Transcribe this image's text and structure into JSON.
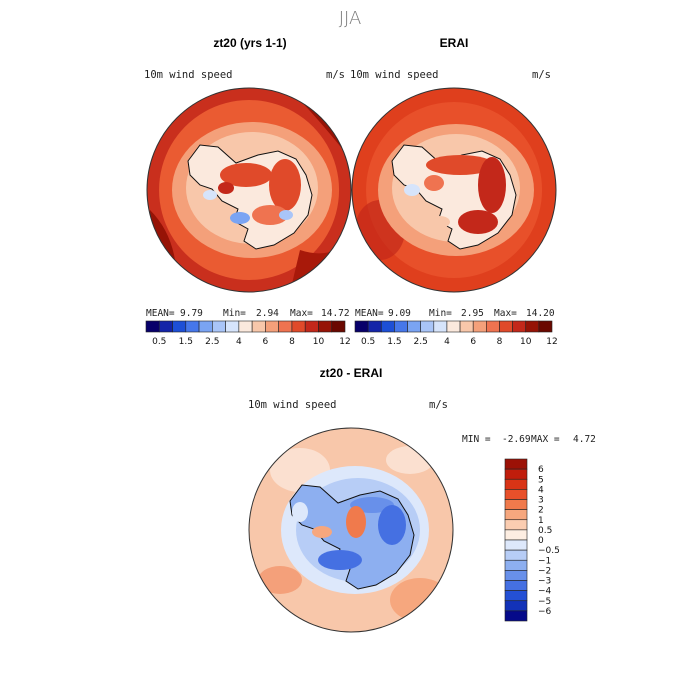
{
  "season": "JJA",
  "chart_data": [
    {
      "type": "heatmap",
      "title": "zt20 (yrs 1-1)",
      "variable": "10m wind speed",
      "units": "m/s",
      "stats": {
        "mean_label": "MEAN=",
        "mean": "9.79",
        "min_label": "Min=",
        "min": "2.94",
        "max_label": "Max=",
        "max": "14.72"
      },
      "levels": [
        "0.5",
        "1.5",
        "2.5",
        "4",
        "6",
        "8",
        "10",
        "12"
      ],
      "colors": [
        "#08006a",
        "#1424a8",
        "#1d4fd6",
        "#4677ea",
        "#7aa4f3",
        "#a9c5f8",
        "#d6e4fb",
        "#fbe9dd",
        "#f8c7aa",
        "#f4a07a",
        "#ef7350",
        "#e04a2a",
        "#c3281a",
        "#961306",
        "#6a0800"
      ]
    },
    {
      "type": "heatmap",
      "title": "ERAI",
      "variable": "10m wind speed",
      "units": "m/s",
      "stats": {
        "mean_label": "MEAN=",
        "mean": "9.09",
        "min_label": "Min=",
        "min": "2.95",
        "max_label": "Max=",
        "max": "14.20"
      },
      "levels": [
        "0.5",
        "1.5",
        "2.5",
        "4",
        "6",
        "8",
        "10",
        "12"
      ],
      "colors": [
        "#08006a",
        "#1424a8",
        "#1d4fd6",
        "#4677ea",
        "#7aa4f3",
        "#a9c5f8",
        "#d6e4fb",
        "#fbe9dd",
        "#f8c7aa",
        "#f4a07a",
        "#ef7350",
        "#e04a2a",
        "#c3281a",
        "#961306",
        "#6a0800"
      ]
    },
    {
      "type": "heatmap",
      "title": "zt20 - ERAI",
      "variable": "10m wind speed",
      "units": "m/s",
      "stats": {
        "min_label": "MIN =",
        "min": "-2.69",
        "max_label": "MAX =",
        "max": "4.72"
      },
      "levels": [
        "6",
        "5",
        "4",
        "3",
        "2",
        "1",
        "0.5",
        "0",
        "−0.5",
        "−1",
        "−2",
        "−3",
        "−4",
        "−5",
        "−6"
      ],
      "colors": [
        "#9c1106",
        "#c01d0c",
        "#d93416",
        "#e8502a",
        "#f07a4c",
        "#f6a77e",
        "#fbcdb1",
        "#fdeee2",
        "#dde8fb",
        "#b7cdf6",
        "#8daff0",
        "#6890ea",
        "#4570e2",
        "#2450d5",
        "#1232b8",
        "#050a8a"
      ]
    }
  ]
}
